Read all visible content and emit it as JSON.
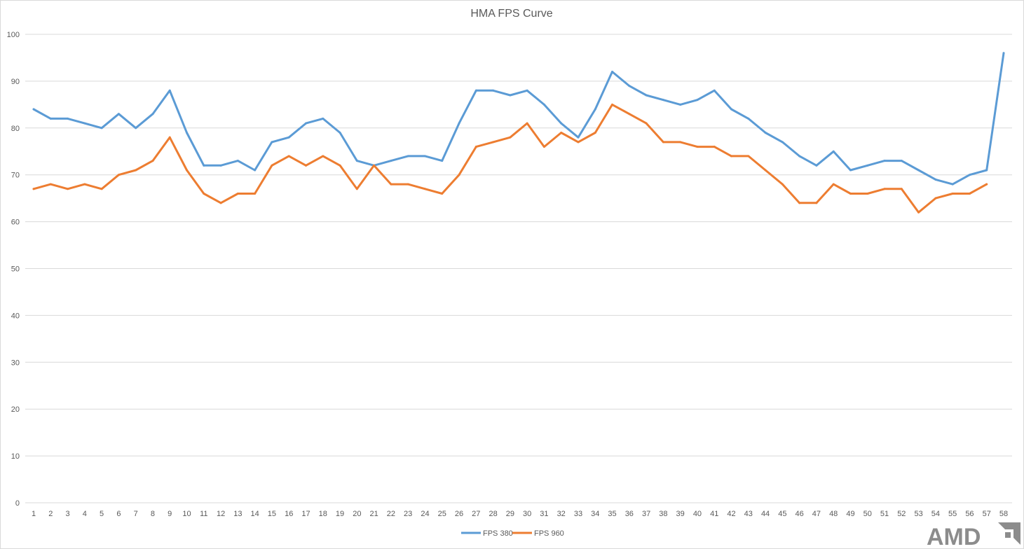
{
  "chart_data": {
    "type": "line",
    "title": "HMA FPS Curve",
    "xlabel": "",
    "ylabel": "",
    "ylim": [
      0,
      100
    ],
    "yticks": [
      0,
      10,
      20,
      30,
      40,
      50,
      60,
      70,
      80,
      90,
      100
    ],
    "categories": [
      "1",
      "2",
      "3",
      "4",
      "5",
      "6",
      "7",
      "8",
      "9",
      "10",
      "11",
      "12",
      "13",
      "14",
      "15",
      "16",
      "17",
      "18",
      "19",
      "20",
      "21",
      "22",
      "23",
      "24",
      "25",
      "26",
      "27",
      "28",
      "29",
      "30",
      "31",
      "32",
      "33",
      "34",
      "35",
      "36",
      "37",
      "38",
      "39",
      "40",
      "41",
      "42",
      "43",
      "44",
      "45",
      "46",
      "47",
      "48",
      "49",
      "50",
      "51",
      "52",
      "53",
      "54",
      "55",
      "56",
      "57",
      "58"
    ],
    "series": [
      {
        "name": "FPS 380",
        "color": "#5B9BD5",
        "values": [
          84,
          82,
          82,
          81,
          80,
          83,
          80,
          83,
          88,
          79,
          72,
          72,
          73,
          71,
          77,
          78,
          81,
          82,
          79,
          73,
          72,
          73,
          74,
          74,
          73,
          81,
          88,
          88,
          87,
          88,
          85,
          81,
          78,
          84,
          92,
          89,
          87,
          86,
          85,
          86,
          88,
          84,
          82,
          79,
          77,
          74,
          72,
          75,
          71,
          72,
          73,
          73,
          71,
          69,
          68,
          70,
          71,
          96
        ]
      },
      {
        "name": "FPS 960",
        "color": "#ED7D31",
        "values": [
          67,
          68,
          67,
          68,
          67,
          70,
          71,
          73,
          78,
          71,
          66,
          64,
          66,
          66,
          72,
          74,
          72,
          74,
          72,
          67,
          72,
          68,
          68,
          67,
          66,
          70,
          76,
          77,
          78,
          81,
          76,
          79,
          77,
          79,
          85,
          83,
          81,
          77,
          77,
          76,
          76,
          74,
          74,
          71,
          68,
          64,
          64,
          68,
          66,
          66,
          67,
          67,
          62,
          65,
          66,
          66,
          68,
          null
        ]
      }
    ],
    "grid": "horizontal",
    "legend_position": "bottom"
  },
  "logo": {
    "text": "AMD",
    "color": "#8c8c8c"
  }
}
